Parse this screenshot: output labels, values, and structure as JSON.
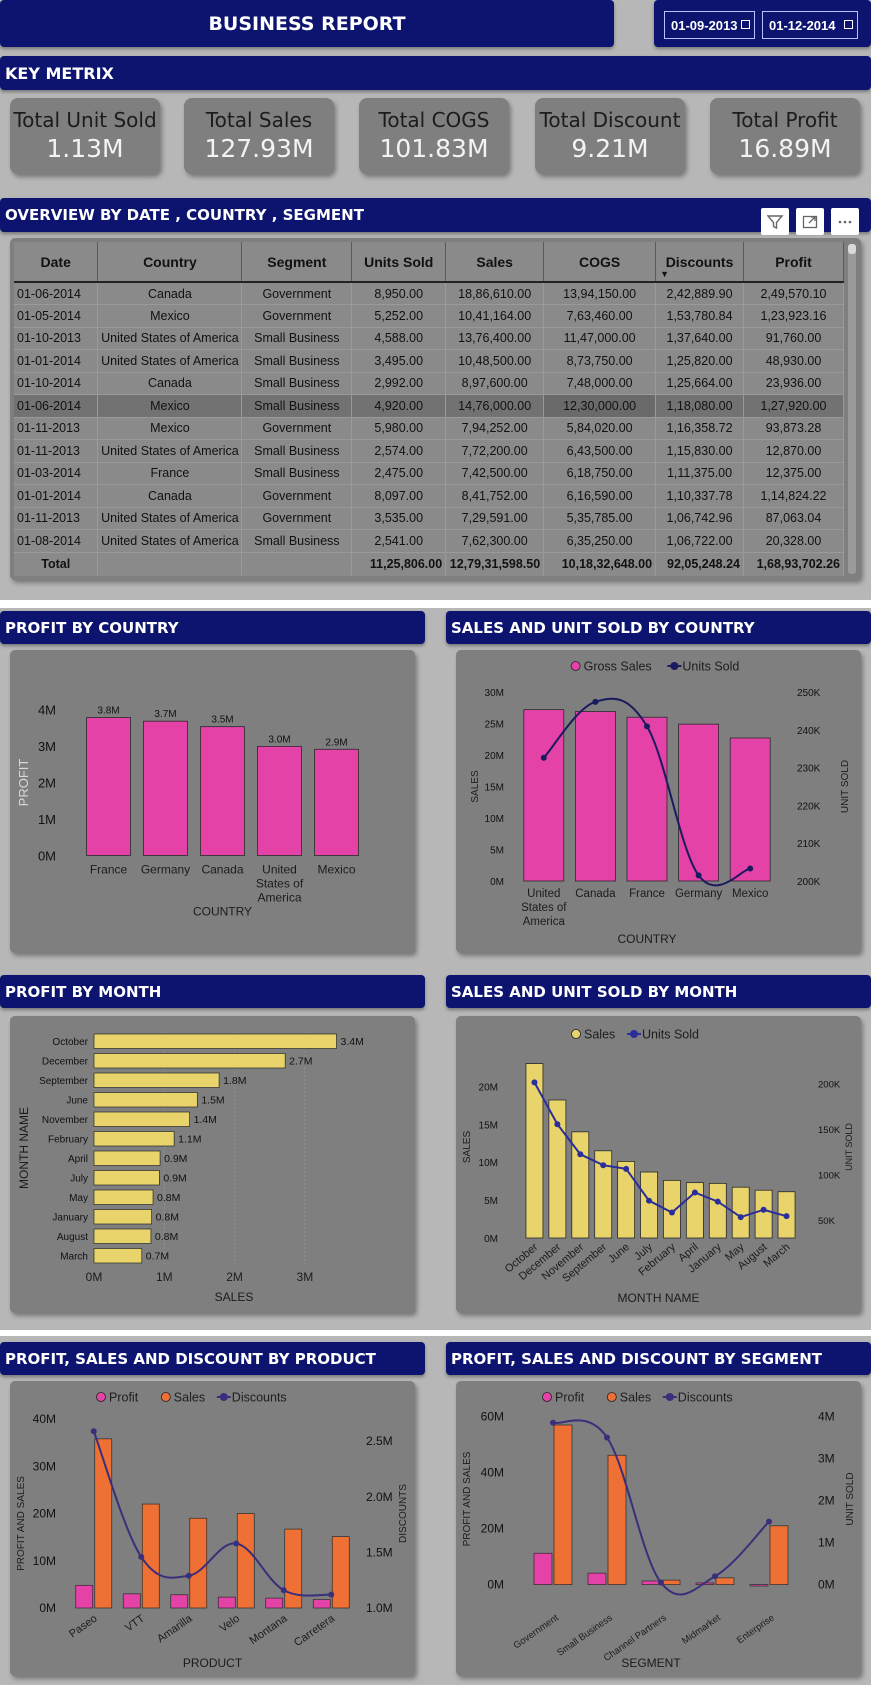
{
  "header": {
    "title": "BUSINESS REPORT",
    "date_from": "01-09-2013",
    "date_to": "01-12-2014",
    "colors": {
      "nav": "#0d1470",
      "panel": "#7f7f7f",
      "band": "#b7b7b7"
    }
  },
  "key_metrix": {
    "title": "KEY METRIX",
    "cards": [
      {
        "label": "Total Unit Sold",
        "value": "1.13M"
      },
      {
        "label": "Total Sales",
        "value": "127.93M"
      },
      {
        "label": "Total COGS",
        "value": "101.83M"
      },
      {
        "label": "Total Discount",
        "value": "9.21M"
      },
      {
        "label": "Total Profit",
        "value": "16.89M"
      }
    ]
  },
  "overview": {
    "title": "OVERVIEW BY DATE , COUNTRY , SEGMENT",
    "icons": [
      "filter-icon",
      "focus-mode-icon",
      "more-options-icon"
    ],
    "columns": [
      "Date",
      "Country",
      "Segment",
      "Units Sold",
      "Sales",
      "COGS",
      "Discounts",
      "Profit"
    ],
    "rows": [
      [
        "01-06-2014",
        "Canada",
        "Government",
        "8,950.00",
        "18,86,610.00",
        "13,94,150.00",
        "2,42,889.90",
        "2,49,570.10"
      ],
      [
        "01-05-2014",
        "Mexico",
        "Government",
        "5,252.00",
        "10,41,164.00",
        "7,63,460.00",
        "1,53,780.84",
        "1,23,923.16"
      ],
      [
        "01-10-2013",
        "United States of America",
        "Small Business",
        "4,588.00",
        "13,76,400.00",
        "11,47,000.00",
        "1,37,640.00",
        "91,760.00"
      ],
      [
        "01-01-2014",
        "United States of America",
        "Small Business",
        "3,495.00",
        "10,48,500.00",
        "8,73,750.00",
        "1,25,820.00",
        "48,930.00"
      ],
      [
        "01-10-2014",
        "Canada",
        "Small Business",
        "2,992.00",
        "8,97,600.00",
        "7,48,000.00",
        "1,25,664.00",
        "23,936.00"
      ],
      [
        "01-06-2014",
        "Mexico",
        "Small Business",
        "4,920.00",
        "14,76,000.00",
        "12,30,000.00",
        "1,18,080.00",
        "1,27,920.00"
      ],
      [
        "01-11-2013",
        "Mexico",
        "Government",
        "5,980.00",
        "7,94,252.00",
        "5,84,020.00",
        "1,16,358.72",
        "93,873.28"
      ],
      [
        "01-11-2013",
        "United States of America",
        "Small Business",
        "2,574.00",
        "7,72,200.00",
        "6,43,500.00",
        "1,15,830.00",
        "12,870.00"
      ],
      [
        "01-03-2014",
        "France",
        "Small Business",
        "2,475.00",
        "7,42,500.00",
        "6,18,750.00",
        "1,11,375.00",
        "12,375.00"
      ],
      [
        "01-01-2014",
        "Canada",
        "Government",
        "8,097.00",
        "8,41,752.00",
        "6,16,590.00",
        "1,10,337.78",
        "1,14,824.22"
      ],
      [
        "01-11-2013",
        "United States of America",
        "Government",
        "3,535.00",
        "7,29,591.00",
        "5,35,785.00",
        "1,06,742.96",
        "87,063.04"
      ],
      [
        "01-08-2014",
        "United States of America",
        "Small Business",
        "2,541.00",
        "7,62,300.00",
        "6,35,250.00",
        "1,06,722.00",
        "20,328.00"
      ]
    ],
    "total": [
      "Total",
      "",
      "",
      "11,25,806.00",
      "12,79,31,598.50",
      "10,18,32,648.00",
      "92,05,248.24",
      "1,68,93,702.26"
    ]
  },
  "chart_titles": {
    "profit_by_country": "PROFIT BY COUNTRY",
    "sales_units_country": "SALES AND UNIT SOLD BY COUNTRY",
    "profit_by_month": "PROFIT BY MONTH",
    "sales_units_month": "SALES AND UNIT SOLD BY MONTH",
    "by_product": "PROFIT, SALES AND DISCOUNT BY PRODUCT",
    "by_segment": "PROFIT, SALES AND DISCOUNT BY SEGMENT"
  },
  "chart_data": [
    {
      "id": "profit_by_country",
      "type": "bar",
      "title": "PROFIT BY COUNTRY",
      "categories": [
        "France",
        "Germany",
        "Canada",
        "United States of America",
        "Mexico"
      ],
      "values": [
        3.78,
        3.68,
        3.53,
        2.99,
        2.91
      ],
      "labels": [
        "3.8M",
        "3.7M",
        "3.5M",
        "3.0M",
        "2.9M"
      ],
      "yticks": [
        "0M",
        "1M",
        "2M",
        "3M",
        "4M"
      ],
      "ylim": [
        0,
        4
      ],
      "xlabel": "COUNTRY",
      "ylabel": "PROFIT",
      "color": "#e542a8"
    },
    {
      "id": "sales_units_country",
      "type": "bar",
      "title": "SALES AND UNIT SOLD BY COUNTRY",
      "categories": [
        "United States of America",
        "Canada",
        "France",
        "Germany",
        "Mexico"
      ],
      "series": [
        {
          "name": "Gross Sales",
          "type": "bar",
          "values": [
            27.2,
            26.9,
            26.0,
            24.9,
            22.7
          ],
          "color": "#e542a8"
        },
        {
          "name": "Units Sold",
          "type": "line",
          "values": [
            232600,
            247400,
            240900,
            201500,
            203300
          ],
          "color": "#1a1a5e"
        }
      ],
      "yticks": [
        "0M",
        "5M",
        "10M",
        "15M",
        "20M",
        "25M",
        "30M"
      ],
      "ylim": [
        0,
        30
      ],
      "y2ticks": [
        "200K",
        "210K",
        "220K",
        "230K",
        "240K",
        "250K"
      ],
      "y2lim": [
        200000,
        250000
      ],
      "xlabel": "COUNTRY",
      "ylabel": "SALES",
      "y2label": "UNIT SOLD",
      "legend": "top-center"
    },
    {
      "id": "profit_by_month",
      "type": "bar",
      "orientation": "horizontal",
      "title": "PROFIT BY MONTH",
      "categories": [
        "October",
        "December",
        "September",
        "June",
        "November",
        "February",
        "April",
        "July",
        "May",
        "January",
        "August",
        "March"
      ],
      "values": [
        3.45,
        2.72,
        1.78,
        1.47,
        1.36,
        1.14,
        0.94,
        0.93,
        0.84,
        0.82,
        0.81,
        0.68
      ],
      "labels": [
        "3.4M",
        "2.7M",
        "1.8M",
        "1.5M",
        "1.4M",
        "1.1M",
        "0.9M",
        "0.9M",
        "0.8M",
        "0.8M",
        "0.8M",
        "0.7M"
      ],
      "xticks": [
        "0M",
        "1M",
        "2M",
        "3M"
      ],
      "xlim": [
        0,
        3.5
      ],
      "xlabel": "SALES",
      "ylabel": "MONTH NAME",
      "color": "#e8d46a"
    },
    {
      "id": "sales_units_month",
      "type": "bar",
      "title": "SALES AND UNIT SOLD BY MONTH",
      "categories": [
        "October",
        "December",
        "November",
        "September",
        "June",
        "July",
        "February",
        "April",
        "January",
        "May",
        "August",
        "March"
      ],
      "series": [
        {
          "name": "Sales",
          "type": "bar",
          "values": [
            23.0,
            18.2,
            14.0,
            11.5,
            10.1,
            8.7,
            7.6,
            7.3,
            7.2,
            6.7,
            6.3,
            6.1
          ],
          "color": "#e8d46a"
        },
        {
          "name": "Units Sold",
          "type": "line",
          "values": [
            201000,
            155000,
            122000,
            110000,
            106000,
            71000,
            58000,
            80000,
            70000,
            53000,
            61000,
            54000
          ],
          "color": "#2b2e9a"
        }
      ],
      "yticks": [
        "0M",
        "5M",
        "10M",
        "15M",
        "20M"
      ],
      "ylim": [
        0,
        24
      ],
      "y2ticks": [
        "50K",
        "100K",
        "150K",
        "200K"
      ],
      "y2lim": [
        30000,
        230000
      ],
      "xlabel": "MONTH NAME",
      "ylabel": "SALES",
      "y2label": "UNIT SOLD",
      "legend": "top-center"
    },
    {
      "id": "by_product",
      "type": "bar",
      "title": "PROFIT, SALES AND DISCOUNT BY PRODUCT",
      "categories": [
        "Paseo",
        "VTT",
        "Amarilla",
        "Velo",
        "Montana",
        "Carretera"
      ],
      "series": [
        {
          "name": "Profit",
          "type": "bar",
          "values": [
            4.8,
            3.0,
            2.8,
            2.3,
            2.1,
            1.8
          ],
          "color": "#e542a8"
        },
        {
          "name": "Sales",
          "type": "bar",
          "values": [
            35.8,
            22.0,
            19.0,
            20.0,
            16.7,
            15.1
          ],
          "color": "#ee7034"
        },
        {
          "name": "Discounts",
          "type": "line",
          "values": [
            2.59,
            1.46,
            1.29,
            1.58,
            1.16,
            1.12
          ],
          "color": "#3a2f7a"
        }
      ],
      "yticks": [
        "0M",
        "10M",
        "20M",
        "30M",
        "40M"
      ],
      "ylim": [
        0,
        40
      ],
      "y2ticks": [
        "1.0M",
        "1.5M",
        "2.0M",
        "2.5M"
      ],
      "y2lim": [
        1.0,
        2.7
      ],
      "xlabel": "PRODUCT",
      "ylabel": "PROFIT AND SALES",
      "y2label": "DISCOUNTS",
      "legend": "top-center"
    },
    {
      "id": "by_segment",
      "type": "bar",
      "title": "PROFIT, SALES AND DISCOUNT BY SEGMENT",
      "categories": [
        "Government",
        "Small Business",
        "Channel Partners",
        "Midmarket",
        "Enterprise"
      ],
      "series": [
        {
          "name": "Profit",
          "type": "bar",
          "values": [
            11.2,
            4.1,
            1.3,
            0.6,
            -0.5
          ],
          "color": "#e542a8"
        },
        {
          "name": "Sales",
          "type": "bar",
          "values": [
            57.0,
            46.2,
            1.6,
            2.4,
            21.0
          ],
          "color": "#ee7034"
        },
        {
          "name": "Discounts",
          "type": "line",
          "values": [
            3.85,
            3.5,
            0.05,
            0.2,
            1.5
          ],
          "color": "#3a2f7a"
        }
      ],
      "yticks": [
        "0M",
        "20M",
        "40M",
        "60M"
      ],
      "ylim": [
        -8,
        62
      ],
      "y2ticks": [
        "0M",
        "1M",
        "2M",
        "3M",
        "4M"
      ],
      "y2lim": [
        -0.53,
        4.13
      ],
      "xlabel": "SEGMENT",
      "ylabel": "PROFIT AND SALES",
      "y2label": "UNIT SOLD",
      "legend": "top-center"
    }
  ]
}
